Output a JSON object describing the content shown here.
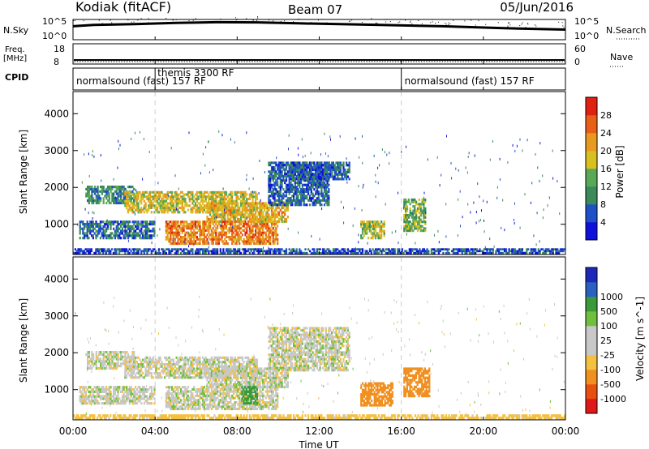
{
  "header": {
    "station": "Kodiak (fitACF)",
    "beam": "Beam 07",
    "date": "05/Jun/2016"
  },
  "strip_labels": {
    "nsky": "N.Sky",
    "freq_line1": "Freq.",
    "freq_line2": "[MHz]",
    "cpid": "CPID",
    "nsearch": "N.Search",
    "nave": "Nave"
  },
  "colors": {
    "power": [
      "#1010dc",
      "#2050c8",
      "#3a8a5a",
      "#58a858",
      "#d8c020",
      "#e89a20",
      "#e86018",
      "#e02010"
    ],
    "velocity": [
      "#e01818",
      "#e85010",
      "#f09020",
      "#f4c040",
      "#c8c8c8",
      "#c8c8c8",
      "#70c040",
      "#3a9a3a",
      "#2a60c0",
      "#1c28b8"
    ],
    "bg": "#ffffff"
  },
  "chart_data": [
    {
      "type": "line",
      "name": "nsky-nsearch",
      "y_left_ticks": [
        "10^5",
        "10^0"
      ],
      "y_right_ticks": [
        "10^5",
        "10^0"
      ],
      "x_range_hours": [
        0,
        24
      ],
      "note_series_shape": [
        [
          0,
          0.65
        ],
        [
          1,
          0.72
        ],
        [
          3,
          0.76
        ],
        [
          5,
          0.82
        ],
        [
          7,
          0.86
        ],
        [
          9,
          0.85
        ],
        [
          11,
          0.8
        ],
        [
          13,
          0.76
        ],
        [
          15,
          0.72
        ],
        [
          18,
          0.65
        ],
        [
          21,
          0.55
        ],
        [
          24,
          0.48
        ]
      ]
    },
    {
      "type": "line",
      "name": "frequency-nave",
      "y_left_ticks": [
        "18",
        "8"
      ],
      "y_right_ticks": [
        "60",
        "0"
      ]
    },
    {
      "type": "table",
      "name": "cpid",
      "segments": [
        {
          "start": 0,
          "end": 16,
          "label": "normalsound (fast) 157 RF"
        },
        {
          "start": 16,
          "end": 24,
          "label": "normalsound (fast) 157 RF"
        }
      ],
      "inset": {
        "start": 4,
        "label": "themis 3300 RF"
      }
    },
    {
      "type": "heatmap",
      "name": "power",
      "title": "",
      "xlabel": "",
      "ylabel": "Slant Range [km]",
      "xlim": [
        0,
        24
      ],
      "ylim": [
        180,
        4600
      ],
      "yticks": [
        1000,
        2000,
        3000,
        4000
      ],
      "colorbar_label": "Power [dB]",
      "colorbar_ticks": [
        "4",
        "8",
        "12",
        "16",
        "20",
        "24",
        "28"
      ],
      "colorbar_range": [
        0,
        32
      ],
      "regions": [
        {
          "t0": 0.6,
          "t1": 3.0,
          "r0": 1550,
          "r1": 2050,
          "level": 10
        },
        {
          "t0": 2.5,
          "t1": 9.0,
          "r0": 1300,
          "r1": 1900,
          "level": 18
        },
        {
          "t0": 4.5,
          "t1": 10.0,
          "r0": 450,
          "r1": 1100,
          "level": 24
        },
        {
          "t0": 6.5,
          "t1": 10.5,
          "r0": 1050,
          "r1": 1600,
          "level": 20
        },
        {
          "t0": 9.5,
          "t1": 12.5,
          "r0": 1500,
          "r1": 2700,
          "level": 7
        },
        {
          "t0": 10.5,
          "t1": 13.5,
          "r0": 2200,
          "r1": 2700,
          "level": 7
        },
        {
          "t0": 0.3,
          "t1": 4.0,
          "r0": 600,
          "r1": 1100,
          "level": 8
        },
        {
          "t0": 14.0,
          "t1": 15.2,
          "r0": 600,
          "r1": 1100,
          "level": 16
        },
        {
          "t0": 16.1,
          "t1": 17.2,
          "r0": 800,
          "r1": 1700,
          "level": 14
        },
        {
          "t0": 0.0,
          "t1": 24.0,
          "r0": 200,
          "r1": 350,
          "level": 6
        }
      ]
    },
    {
      "type": "heatmap",
      "name": "velocity",
      "title": "",
      "xlabel": "Time UT",
      "ylabel": "Slant Range [km]",
      "xlim": [
        0,
        24
      ],
      "ylim": [
        180,
        4600
      ],
      "yticks": [
        1000,
        2000,
        3000,
        4000
      ],
      "xticks": [
        "00:00",
        "04:00",
        "08:00",
        "12:00",
        "16:00",
        "20:00",
        "00:00"
      ],
      "colorbar_label": "Velocity [m s^-1]",
      "colorbar_ticks": [
        "-1000",
        "-500",
        "-100",
        "-25",
        "25",
        "100",
        "500",
        "1000"
      ],
      "regions": [
        {
          "t0": 0.6,
          "t1": 3.0,
          "r0": 1550,
          "r1": 2050,
          "vel": 0
        },
        {
          "t0": 2.5,
          "t1": 9.0,
          "r0": 1300,
          "r1": 1900,
          "vel": 0
        },
        {
          "t0": 4.5,
          "t1": 10.0,
          "r0": 450,
          "r1": 1100,
          "vel": 0
        },
        {
          "t0": 6.5,
          "t1": 10.5,
          "r0": 1050,
          "r1": 1600,
          "vel": 0
        },
        {
          "t0": 9.5,
          "t1": 13.5,
          "r0": 1500,
          "r1": 2700,
          "vel": 0
        },
        {
          "t0": 0.3,
          "t1": 4.0,
          "r0": 600,
          "r1": 1100,
          "vel": 0
        },
        {
          "t0": 8.2,
          "t1": 9.0,
          "r0": 600,
          "r1": 1100,
          "vel": 150
        },
        {
          "t0": 14.0,
          "t1": 15.6,
          "r0": 550,
          "r1": 1200,
          "vel": -300
        },
        {
          "t0": 16.1,
          "t1": 17.4,
          "r0": 800,
          "r1": 1600,
          "vel": -400
        },
        {
          "t0": 0.0,
          "t1": 24.0,
          "r0": 200,
          "r1": 330,
          "vel": -60
        }
      ]
    }
  ]
}
